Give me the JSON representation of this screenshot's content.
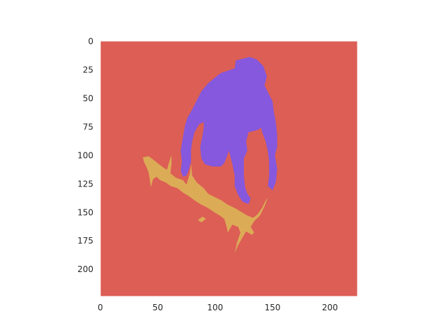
{
  "chart_data": {
    "type": "heatmap",
    "title": "",
    "xlabel": "",
    "ylabel": "",
    "image_size": [
      224,
      224
    ],
    "xlim": [
      0,
      224
    ],
    "ylim": [
      224,
      0
    ],
    "xticks": [
      0,
      50,
      100,
      150,
      200
    ],
    "yticks": [
      0,
      25,
      50,
      75,
      100,
      125,
      150,
      175,
      200
    ],
    "grid": false,
    "legend": "none",
    "colors": {
      "background_class": "#dc5e55",
      "person_class": "#8558de",
      "skateboard_class": "#dcab56",
      "frame": "#ffffff"
    },
    "regions": [
      {
        "name": "person",
        "color_key": "person_class",
        "polygon": [
          [
            118,
            17
          ],
          [
            130,
            14
          ],
          [
            136,
            16
          ],
          [
            142,
            22
          ],
          [
            145,
            31
          ],
          [
            143,
            39
          ],
          [
            146,
            45
          ],
          [
            150,
            53
          ],
          [
            151,
            61
          ],
          [
            153,
            72
          ],
          [
            154,
            82
          ],
          [
            154,
            93
          ],
          [
            152,
            100
          ],
          [
            154,
            112
          ],
          [
            153,
            123
          ],
          [
            150,
            131
          ],
          [
            146,
            127
          ],
          [
            147,
            118
          ],
          [
            147,
            106
          ],
          [
            146,
            97
          ],
          [
            144,
            88
          ],
          [
            141,
            80
          ],
          [
            140,
            76
          ],
          [
            137,
            78
          ],
          [
            129,
            80
          ],
          [
            127,
            88
          ],
          [
            128,
            96
          ],
          [
            125,
            103
          ],
          [
            125,
            118
          ],
          [
            126,
            128
          ],
          [
            128,
            134
          ],
          [
            131,
            138
          ],
          [
            129,
            143
          ],
          [
            124,
            141
          ],
          [
            120,
            135
          ],
          [
            117,
            127
          ],
          [
            117,
            118
          ],
          [
            115,
            108
          ],
          [
            113,
            100
          ],
          [
            112,
            96
          ],
          [
            110,
            102
          ],
          [
            108,
            107
          ],
          [
            105,
            110
          ],
          [
            97,
            110
          ],
          [
            91,
            108
          ],
          [
            88,
            103
          ],
          [
            87,
            93
          ],
          [
            89,
            83
          ],
          [
            90,
            76
          ],
          [
            90,
            71
          ],
          [
            86,
            73
          ],
          [
            82,
            80
          ],
          [
            80,
            88
          ],
          [
            79,
            96
          ],
          [
            79,
            106
          ],
          [
            77,
            113
          ],
          [
            75,
            118
          ],
          [
            72,
            119
          ],
          [
            70,
            114
          ],
          [
            71,
            106
          ],
          [
            70,
            96
          ],
          [
            72,
            84
          ],
          [
            74,
            73
          ],
          [
            76,
            67
          ],
          [
            80,
            60
          ],
          [
            84,
            52
          ],
          [
            88,
            44
          ],
          [
            94,
            37
          ],
          [
            100,
            32
          ],
          [
            105,
            28
          ],
          [
            111,
            26
          ],
          [
            117,
            24
          ]
        ]
      },
      {
        "name": "skateboard",
        "color_key": "skateboard_class",
        "polygon": [
          [
            37,
            102
          ],
          [
            42,
            101
          ],
          [
            46,
            104
          ],
          [
            51,
            108
          ],
          [
            55,
            111
          ],
          [
            58,
            113
          ],
          [
            60,
            106
          ],
          [
            62,
            100
          ],
          [
            62,
            108
          ],
          [
            61,
            116
          ],
          [
            66,
            120
          ],
          [
            72,
            122
          ],
          [
            75,
            126
          ],
          [
            78,
            116
          ],
          [
            79,
            108
          ],
          [
            80,
            118
          ],
          [
            84,
            124
          ],
          [
            90,
            129
          ],
          [
            94,
            134
          ],
          [
            100,
            137
          ],
          [
            106,
            140
          ],
          [
            110,
            143
          ],
          [
            118,
            147
          ],
          [
            123,
            150
          ],
          [
            128,
            153
          ],
          [
            133,
            155
          ],
          [
            137,
            152
          ],
          [
            141,
            146
          ],
          [
            144,
            140
          ],
          [
            146,
            137
          ],
          [
            143,
            145
          ],
          [
            139,
            153
          ],
          [
            134,
            158
          ],
          [
            131,
            163
          ],
          [
            134,
            168
          ],
          [
            132,
            170
          ],
          [
            127,
            167
          ],
          [
            124,
            172
          ],
          [
            120,
            179
          ],
          [
            117,
            186
          ],
          [
            119,
            177
          ],
          [
            122,
            168
          ],
          [
            120,
            163
          ],
          [
            115,
            161
          ],
          [
            111,
            168
          ],
          [
            110,
            163
          ],
          [
            108,
            156
          ],
          [
            104,
            153
          ],
          [
            99,
            150
          ],
          [
            93,
            146
          ],
          [
            87,
            143
          ],
          [
            81,
            139
          ],
          [
            77,
            136
          ],
          [
            72,
            133
          ],
          [
            67,
            129
          ],
          [
            61,
            127
          ],
          [
            57,
            124
          ],
          [
            52,
            122
          ],
          [
            49,
            119
          ],
          [
            46,
            121
          ],
          [
            44,
            128
          ],
          [
            43,
            121
          ],
          [
            42,
            115
          ],
          [
            40,
            110
          ],
          [
            38,
            106
          ]
        ]
      },
      {
        "name": "skateboard-fragment",
        "color_key": "skateboard_class",
        "polygon": [
          [
            85,
            157
          ],
          [
            89,
            154
          ],
          [
            92,
            156
          ],
          [
            88,
            159
          ]
        ]
      }
    ]
  }
}
